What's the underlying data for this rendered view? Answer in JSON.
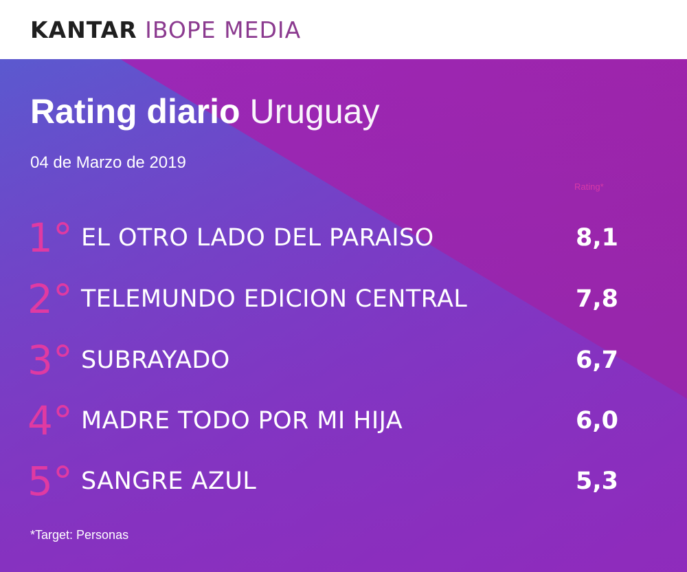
{
  "brand": {
    "part1": "KANTAR",
    "part2": "IBOPE MEDIA"
  },
  "heading": {
    "strong": "Rating diario",
    "light": "Uruguay"
  },
  "date": "04 de Marzo de 2019",
  "metric_label": "Rating*",
  "rankings": [
    {
      "rank": "1°",
      "program": "EL OTRO LADO DEL PARAISO",
      "rating": "8,1"
    },
    {
      "rank": "2°",
      "program": "TELEMUNDO EDICION CENTRAL",
      "rating": "7,8"
    },
    {
      "rank": "3°",
      "program": "SUBRAYADO",
      "rating": "6,7"
    },
    {
      "rank": "4°",
      "program": "MADRE TODO POR MI HIJA",
      "rating": "6,0"
    },
    {
      "rank": "5°",
      "program": "SANGRE AZUL",
      "rating": "5,3"
    }
  ],
  "footnote": "*Target: Personas",
  "colors": {
    "background_gradient_blue": "#6c52c8",
    "background_purple": "#8d2cc0",
    "background_magenta": "#a0229f",
    "rank_accent": "#e03aa2",
    "text": "#ffffff",
    "brand_dark": "#1f1f1f",
    "brand_accent": "#8b3a8f"
  }
}
